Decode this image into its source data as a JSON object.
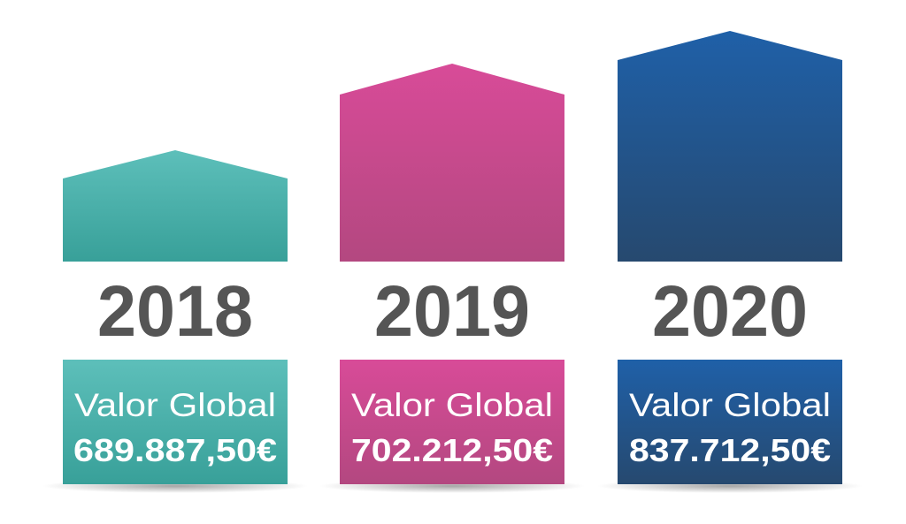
{
  "items": [
    {
      "year": "2018",
      "label": "Valor Global",
      "value": "689.887,50€"
    },
    {
      "year": "2019",
      "label": "Valor Global",
      "value": "702.212,50€"
    },
    {
      "year": "2020",
      "label": "Valor Global",
      "value": "837.712,50€"
    }
  ]
}
